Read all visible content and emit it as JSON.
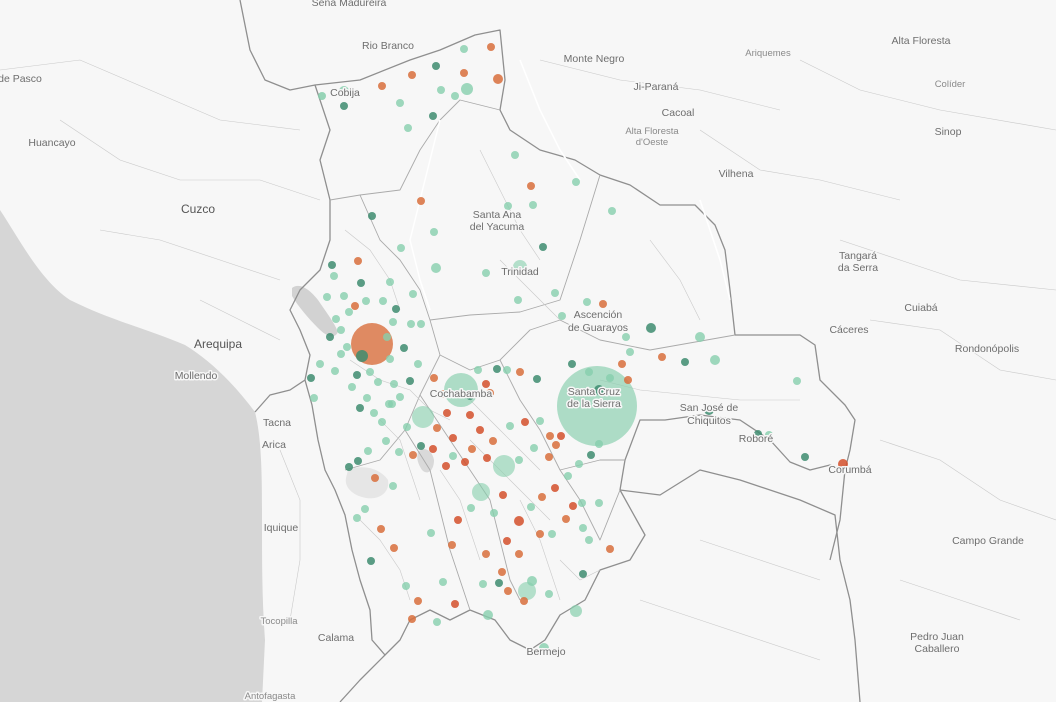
{
  "colors": {
    "land": "#f7f7f7",
    "land_focus": "#f9f9f9",
    "ocean": "#d6d6d6",
    "lake": "#d2d2d2",
    "river": "#ffffff",
    "border_country": "#8f8f8f",
    "border_dept": "#aaaaaa",
    "border_muni": "#c9c9c9",
    "series": {
      "light": "#86ceac",
      "dark": "#3e8c70",
      "orange": "#d86e3c",
      "red": "#d4502c"
    }
  },
  "places": [
    {
      "name": "Sena Madureira",
      "tier": "mid"
    },
    {
      "name": "Rio Branco",
      "tier": "mid"
    },
    {
      "name": "Monte Negro",
      "tier": "mid"
    },
    {
      "name": "Ariquemes",
      "tier": "small"
    },
    {
      "name": "Alta Floresta",
      "tier": "mid"
    },
    {
      "name": "Colíder",
      "tier": "small"
    },
    {
      "name": "Sinop",
      "tier": "mid"
    },
    {
      "name": "de Pasco",
      "tier": "mid"
    },
    {
      "name": "Cobija",
      "tier": "mid"
    },
    {
      "name": "Ji-Paraná",
      "tier": "mid"
    },
    {
      "name": "Cacoal",
      "tier": "mid"
    },
    {
      "name": "Alta Floresta",
      "tier": "small"
    },
    {
      "name": "d'Oeste",
      "tier": "small"
    },
    {
      "name": "Huancayo",
      "tier": "mid"
    },
    {
      "name": "Vilhena",
      "tier": "mid"
    },
    {
      "name": "Cuzco",
      "tier": "big"
    },
    {
      "name": "Santa Ana",
      "tier": "mid"
    },
    {
      "name": "del Yacuma",
      "tier": "mid"
    },
    {
      "name": "Tangará",
      "tier": "mid"
    },
    {
      "name": "da Serra",
      "tier": "mid"
    },
    {
      "name": "Trinidad",
      "tier": "mid"
    },
    {
      "name": "Cuiabá",
      "tier": "mid"
    },
    {
      "name": "Ascención",
      "tier": "mid"
    },
    {
      "name": "de Guarayos",
      "tier": "mid"
    },
    {
      "name": "Cáceres",
      "tier": "mid"
    },
    {
      "name": "Arequipa",
      "tier": "big"
    },
    {
      "name": "Rondonópolis",
      "tier": "mid"
    },
    {
      "name": "Mollendo",
      "tier": "mid"
    },
    {
      "name": "Cochabamba",
      "tier": "mid"
    },
    {
      "name": "Santa Cruz",
      "tier": "mid"
    },
    {
      "name": "de la Sierra",
      "tier": "mid"
    },
    {
      "name": "San José de",
      "tier": "mid"
    },
    {
      "name": "Chiquitos",
      "tier": "mid"
    },
    {
      "name": "Tacna",
      "tier": "mid"
    },
    {
      "name": "Roboré",
      "tier": "mid"
    },
    {
      "name": "Arica",
      "tier": "mid"
    },
    {
      "name": "Corumbá",
      "tier": "mid"
    },
    {
      "name": "Iquique",
      "tier": "mid"
    },
    {
      "name": "Campo Grande",
      "tier": "mid"
    },
    {
      "name": "Tocopilla",
      "tier": "small"
    },
    {
      "name": "Calama",
      "tier": "mid"
    },
    {
      "name": "Pedro Juan",
      "tier": "mid"
    },
    {
      "name": "Caballero",
      "tier": "mid"
    },
    {
      "name": "Bermejo",
      "tier": "mid"
    },
    {
      "name": "Antofagasta",
      "tier": "small"
    }
  ]
}
